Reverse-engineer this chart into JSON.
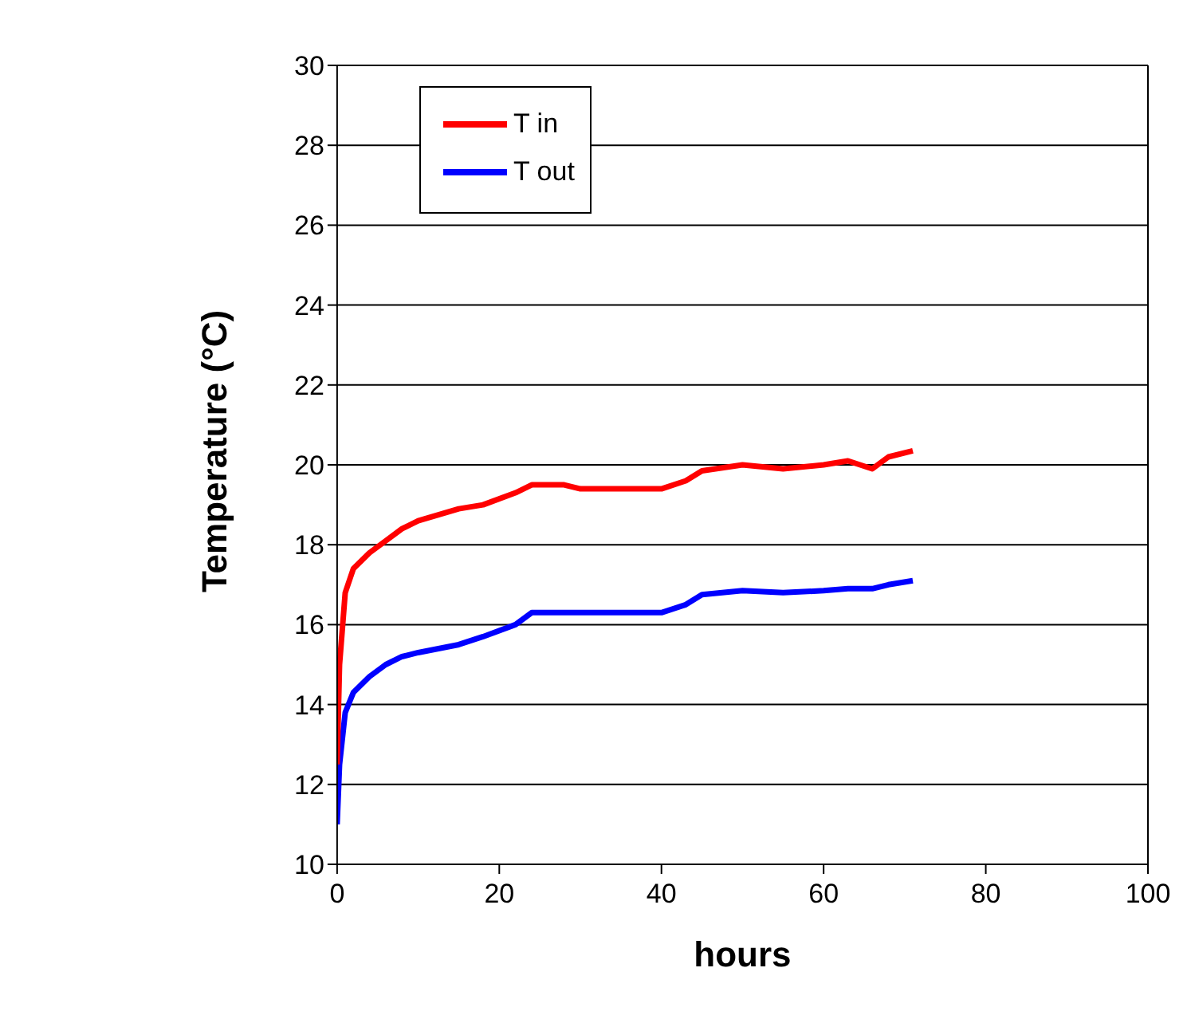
{
  "chart_data": {
    "type": "line",
    "xlabel": "hours",
    "ylabel": "Temperature (°C)",
    "x": [
      0,
      0.3,
      1,
      2,
      4,
      6,
      8,
      10,
      15,
      18,
      22,
      24,
      28,
      30,
      35,
      40,
      43,
      45,
      50,
      55,
      60,
      63,
      66,
      68,
      71
    ],
    "series": [
      {
        "name": "T in",
        "color": "#ff0000",
        "values": [
          12.5,
          15,
          16.8,
          17.4,
          17.8,
          18.1,
          18.4,
          18.6,
          18.9,
          19.0,
          19.3,
          19.5,
          19.5,
          19.4,
          19.4,
          19.4,
          19.6,
          19.85,
          20.0,
          19.9,
          20.0,
          20.1,
          19.9,
          20.2,
          20.35
        ]
      },
      {
        "name": "T out",
        "color": "#0000ff",
        "values": [
          11.0,
          12.5,
          13.8,
          14.3,
          14.7,
          15.0,
          15.2,
          15.3,
          15.5,
          15.7,
          16.0,
          16.3,
          16.3,
          16.3,
          16.3,
          16.3,
          16.5,
          16.75,
          16.85,
          16.8,
          16.85,
          16.9,
          16.9,
          17.0,
          17.1
        ]
      }
    ],
    "xlim": [
      0,
      100
    ],
    "xticks": [
      0,
      20,
      40,
      60,
      80,
      100
    ],
    "ylim": [
      10,
      30
    ],
    "yticks": [
      10,
      12,
      14,
      16,
      18,
      20,
      22,
      24,
      26,
      28,
      30
    ],
    "grid": "y",
    "legend": "top left",
    "marker": "none",
    "line_style": "solid"
  }
}
